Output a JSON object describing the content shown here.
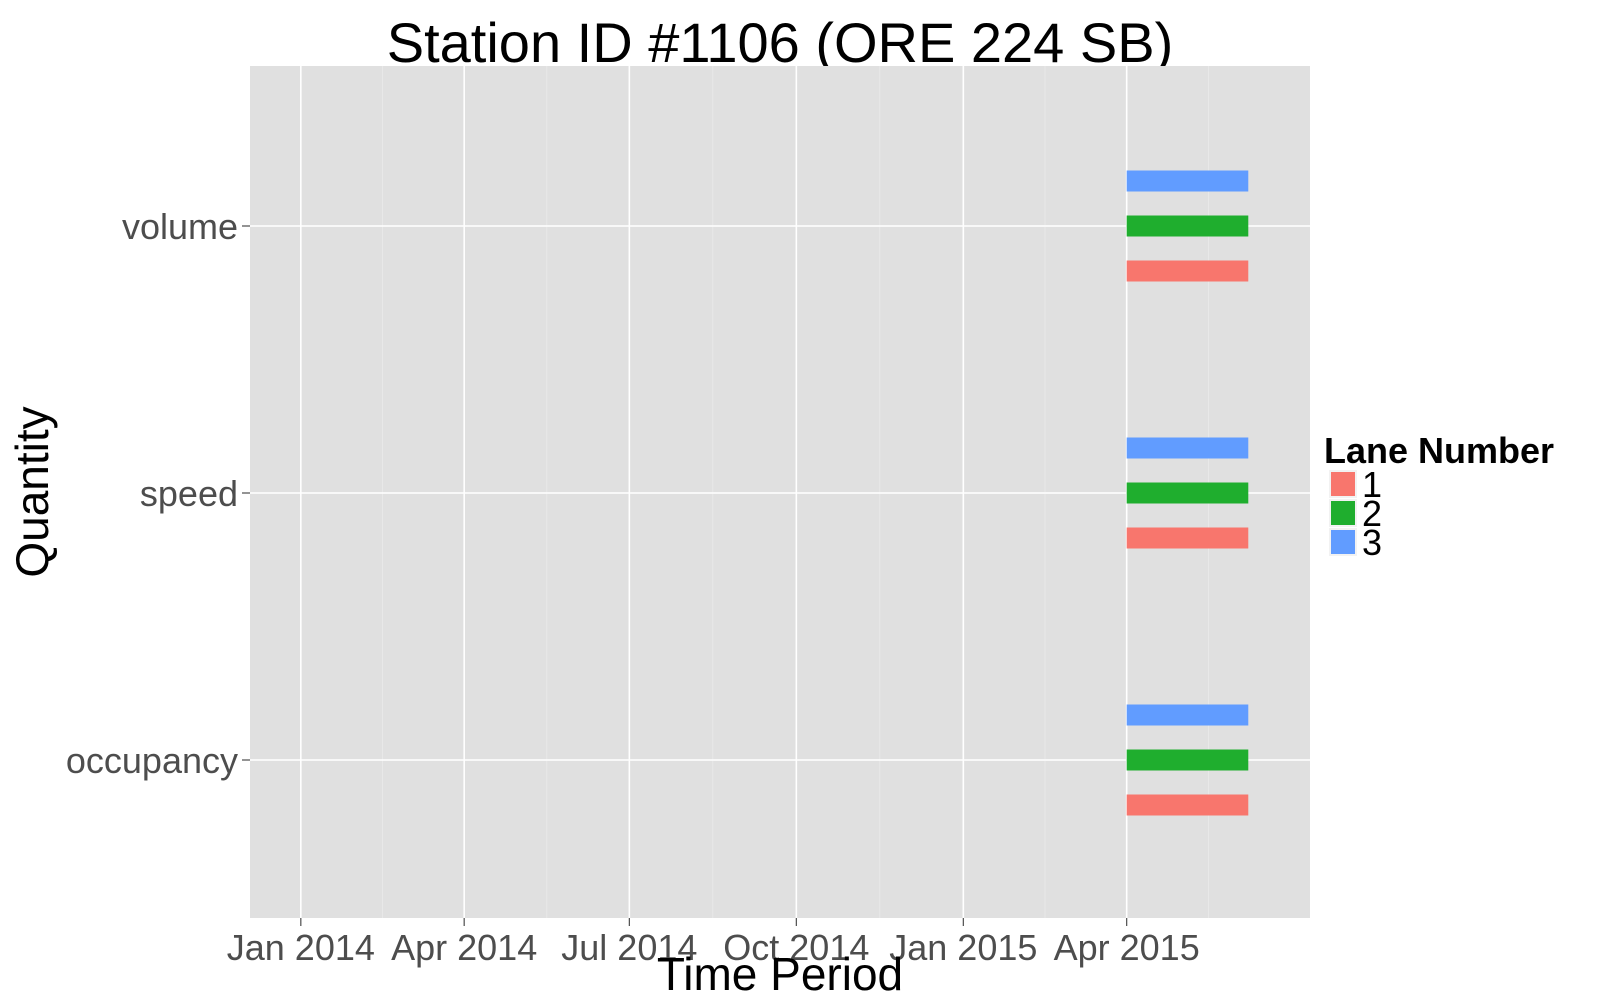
{
  "chart_data": {
    "type": "bar",
    "title": "Station ID #1106 (ORE 224 SB)",
    "xlabel": "Time Period",
    "ylabel": "Quantity",
    "x_ticks": [
      "2014-01-01",
      "2014-04-01",
      "2014-07-01",
      "2014-10-01",
      "2015-01-01",
      "2015-04-01"
    ],
    "x_tick_labels": [
      "Jan 2014",
      "Apr 2014",
      "Jul 2014",
      "Oct 2014",
      "Jan 2015",
      "Apr 2015"
    ],
    "xlim": [
      "2013-12-04",
      "2015-07-11"
    ],
    "categories": [
      "volume",
      "speed",
      "occupancy"
    ],
    "grid": true,
    "legend": {
      "title": "Lane Number",
      "position": "right"
    },
    "series": [
      {
        "name": "1",
        "color": "#F8766D",
        "segments": [
          {
            "quantity": "volume",
            "start": "2015-04-01",
            "end": "2015-06-07"
          },
          {
            "quantity": "speed",
            "start": "2015-04-01",
            "end": "2015-06-07"
          },
          {
            "quantity": "occupancy",
            "start": "2015-04-01",
            "end": "2015-06-07"
          }
        ]
      },
      {
        "name": "2",
        "color": "#1FAE2E",
        "segments": [
          {
            "quantity": "volume",
            "start": "2015-04-01",
            "end": "2015-06-07"
          },
          {
            "quantity": "speed",
            "start": "2015-04-01",
            "end": "2015-06-07"
          },
          {
            "quantity": "occupancy",
            "start": "2015-04-01",
            "end": "2015-06-07"
          }
        ]
      },
      {
        "name": "3",
        "color": "#619CFF",
        "segments": [
          {
            "quantity": "volume",
            "start": "2015-04-01",
            "end": "2015-06-07"
          },
          {
            "quantity": "speed",
            "start": "2015-04-01",
            "end": "2015-06-07"
          },
          {
            "quantity": "occupancy",
            "start": "2015-04-01",
            "end": "2015-06-07"
          }
        ]
      }
    ]
  }
}
